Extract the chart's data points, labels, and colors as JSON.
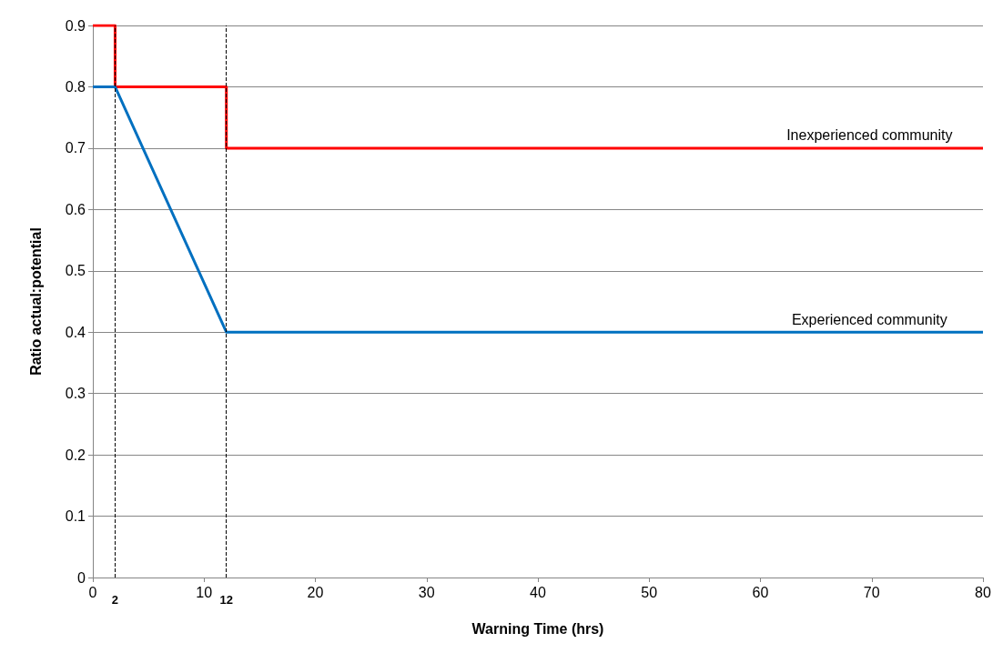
{
  "chart_data": {
    "type": "line",
    "xlabel": "Warning Time (hrs)",
    "ylabel": "Ratio actual:potential",
    "xlim": [
      0,
      80
    ],
    "xticks": [
      0,
      10,
      20,
      30,
      40,
      50,
      60,
      70,
      80
    ],
    "ylim": [
      0,
      0.9
    ],
    "yticks": [
      0,
      0.1,
      0.2,
      0.3,
      0.4,
      0.5,
      0.6,
      0.7,
      0.8,
      0.9
    ],
    "grid": "y",
    "legend": false,
    "marker": "none",
    "line_style": "solid",
    "series": [
      {
        "name": "Inexperienced community",
        "color": "#ff0000",
        "x": [
          0,
          2,
          2,
          12,
          12,
          80
        ],
        "values": [
          0.9,
          0.9,
          0.8,
          0.8,
          0.7,
          0.7
        ]
      },
      {
        "name": "Experienced community",
        "color": "#0070c0",
        "x": [
          0,
          2,
          12,
          80
        ],
        "values": [
          0.8,
          0.8,
          0.4,
          0.4
        ]
      }
    ],
    "ref_lines": [
      {
        "axis": "x",
        "value": 2,
        "label": "2",
        "color": "#000000",
        "line_style": "dashed"
      },
      {
        "axis": "x",
        "value": 12,
        "label": "12",
        "color": "#000000",
        "line_style": "dashed"
      }
    ]
  }
}
